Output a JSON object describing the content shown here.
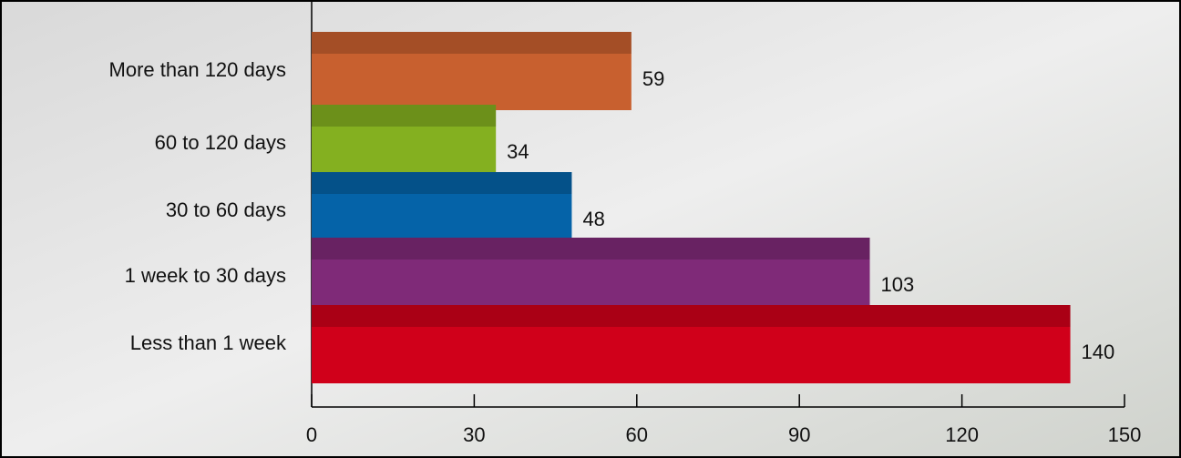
{
  "chart_data": {
    "type": "bar",
    "orientation": "horizontal",
    "categories": [
      "More than 120 days",
      "60 to 120 days",
      "30 to 60 days",
      "1 week to 30 days",
      "Less than 1 week"
    ],
    "values": [
      59,
      34,
      48,
      103,
      140
    ],
    "colors": [
      "#c8602f",
      "#84b020",
      "#0563a8",
      "#7f2a78",
      "#d0001a"
    ],
    "xlim": [
      0,
      150
    ],
    "xticks": [
      0,
      30,
      60,
      90,
      120,
      150
    ]
  }
}
